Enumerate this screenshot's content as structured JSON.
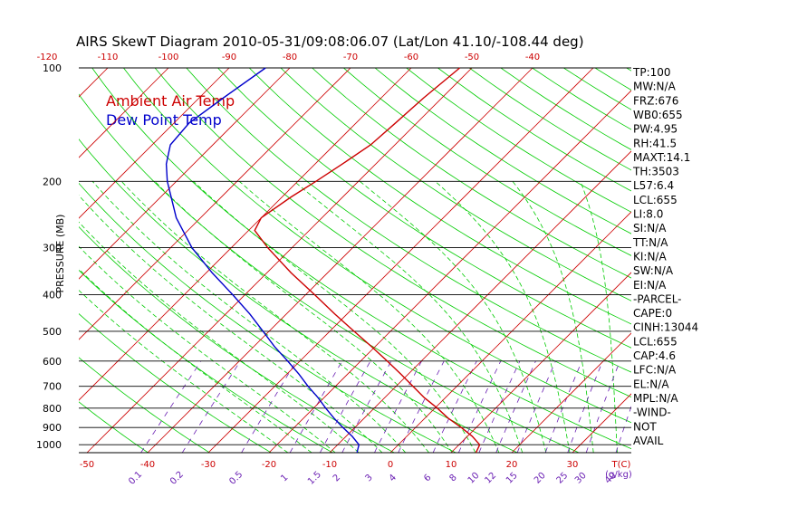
{
  "chart_data": {
    "type": "line",
    "title": "AIRS SkewT Diagram 2010-05-31/09:08:06.07 (Lat/Lon 41.10/-108.44 deg)",
    "ylabel": "PRESSURE (MB)",
    "x_unit_label": "T(C)",
    "mixing_ratio_unit_label": "(g/kg)",
    "pressure_ticks": [
      "100",
      "200",
      "300",
      "400",
      "500",
      "600",
      "700",
      "800",
      "900",
      "1000"
    ],
    "pressure_tick_values": [
      100,
      200,
      300,
      400,
      500,
      600,
      700,
      800,
      900,
      1000
    ],
    "pressure_range_mb": [
      100,
      1050
    ],
    "bottom_temp_ticks": [
      "-50",
      "-40",
      "-30",
      "-20",
      "-10",
      "0",
      "10",
      "20",
      "30"
    ],
    "bottom_temp_values": [
      -50,
      -40,
      -30,
      -20,
      -10,
      0,
      10,
      20,
      30
    ],
    "top_temp_ticks": [
      "-120",
      "-110",
      "-100",
      "-90",
      "-80",
      "-70",
      "-60",
      "-50",
      "-40"
    ],
    "top_temp_values": [
      -120,
      -110,
      -100,
      -90,
      -80,
      -70,
      -60,
      -50,
      -40
    ],
    "mixing_ratio_labels": [
      "0.1",
      "0.2",
      "0.5",
      "1",
      "1.5",
      "2",
      "3",
      "4",
      "6",
      "8",
      "10",
      "12",
      "15",
      "20",
      "25",
      "30",
      "40"
    ],
    "mixing_ratio_values": [
      0.1,
      0.2,
      0.5,
      1,
      1.5,
      2,
      3,
      4,
      6,
      8,
      10,
      12,
      15,
      20,
      25,
      30,
      40
    ],
    "series": [
      {
        "name": "Ambient Air Temp",
        "color": "#cc0000",
        "points": [
          {
            "p": 1050,
            "t": 14.1
          },
          {
            "p": 1000,
            "t": 13.4
          },
          {
            "p": 950,
            "t": 10.8
          },
          {
            "p": 900,
            "t": 7.5
          },
          {
            "p": 850,
            "t": 3.8
          },
          {
            "p": 800,
            "t": 0.4
          },
          {
            "p": 750,
            "t": -3.5
          },
          {
            "p": 700,
            "t": -7.2
          },
          {
            "p": 650,
            "t": -11.2
          },
          {
            "p": 600,
            "t": -15.6
          },
          {
            "p": 550,
            "t": -20.5
          },
          {
            "p": 500,
            "t": -26.0
          },
          {
            "p": 450,
            "t": -32.0
          },
          {
            "p": 400,
            "t": -38.5
          },
          {
            "p": 350,
            "t": -46.0
          },
          {
            "p": 300,
            "t": -54.0
          },
          {
            "p": 270,
            "t": -59.0
          },
          {
            "p": 250,
            "t": -60.0
          },
          {
            "p": 220,
            "t": -58.5
          },
          {
            "p": 200,
            "t": -57.0
          },
          {
            "p": 180,
            "t": -55.5
          },
          {
            "p": 160,
            "t": -54.0
          },
          {
            "p": 140,
            "t": -53.5
          },
          {
            "p": 120,
            "t": -53.0
          },
          {
            "p": 100,
            "t": -52.0
          }
        ]
      },
      {
        "name": "Dew Point Temp",
        "color": "#0000cc",
        "points": [
          {
            "p": 1050,
            "t": -5.5
          },
          {
            "p": 1000,
            "t": -6.5
          },
          {
            "p": 950,
            "t": -9.0
          },
          {
            "p": 900,
            "t": -12.0
          },
          {
            "p": 850,
            "t": -15.0
          },
          {
            "p": 800,
            "t": -18.0
          },
          {
            "p": 750,
            "t": -21.0
          },
          {
            "p": 700,
            "t": -24.5
          },
          {
            "p": 650,
            "t": -28.0
          },
          {
            "p": 600,
            "t": -32.0
          },
          {
            "p": 550,
            "t": -36.5
          },
          {
            "p": 500,
            "t": -41.0
          },
          {
            "p": 450,
            "t": -46.0
          },
          {
            "p": 400,
            "t": -52.0
          },
          {
            "p": 350,
            "t": -59.0
          },
          {
            "p": 300,
            "t": -66.5
          },
          {
            "p": 250,
            "t": -74.0
          },
          {
            "p": 200,
            "t": -81.5
          },
          {
            "p": 180,
            "t": -84.5
          },
          {
            "p": 160,
            "t": -87.0
          },
          {
            "p": 140,
            "t": -87.5
          },
          {
            "p": 120,
            "t": -86.0
          },
          {
            "p": 100,
            "t": -84.0
          }
        ]
      }
    ],
    "grid": true
  },
  "indices": [
    "TP:100",
    "MW:N/A",
    "FRZ:676",
    "WB0:655",
    "PW:4.95",
    "RH:41.5",
    "MAXT:14.1",
    "TH:3503",
    "L57:6.4",
    "LCL:655",
    "LI:8.0",
    "SI:N/A",
    "TT:N/A",
    "KI:N/A",
    "SW:N/A",
    "EI:N/A",
    "-PARCEL-",
    "CAPE:0",
    "CINH:13044",
    "LCL:655",
    "CAP:4.6",
    "LFC:N/A",
    "EL:N/A",
    "MPL:N/A",
    "-WIND-",
    "NOT",
    "AVAIL"
  ],
  "colors": {
    "isobar": "#000000",
    "isotherm": "#cc0000",
    "dry_adiabat": "#00cc00",
    "moist_adiabat": "#00cc00",
    "mixing_ratio": "#6a1fb3",
    "temp_label": "#cc0000",
    "mixing_label": "#6a1fb3"
  }
}
